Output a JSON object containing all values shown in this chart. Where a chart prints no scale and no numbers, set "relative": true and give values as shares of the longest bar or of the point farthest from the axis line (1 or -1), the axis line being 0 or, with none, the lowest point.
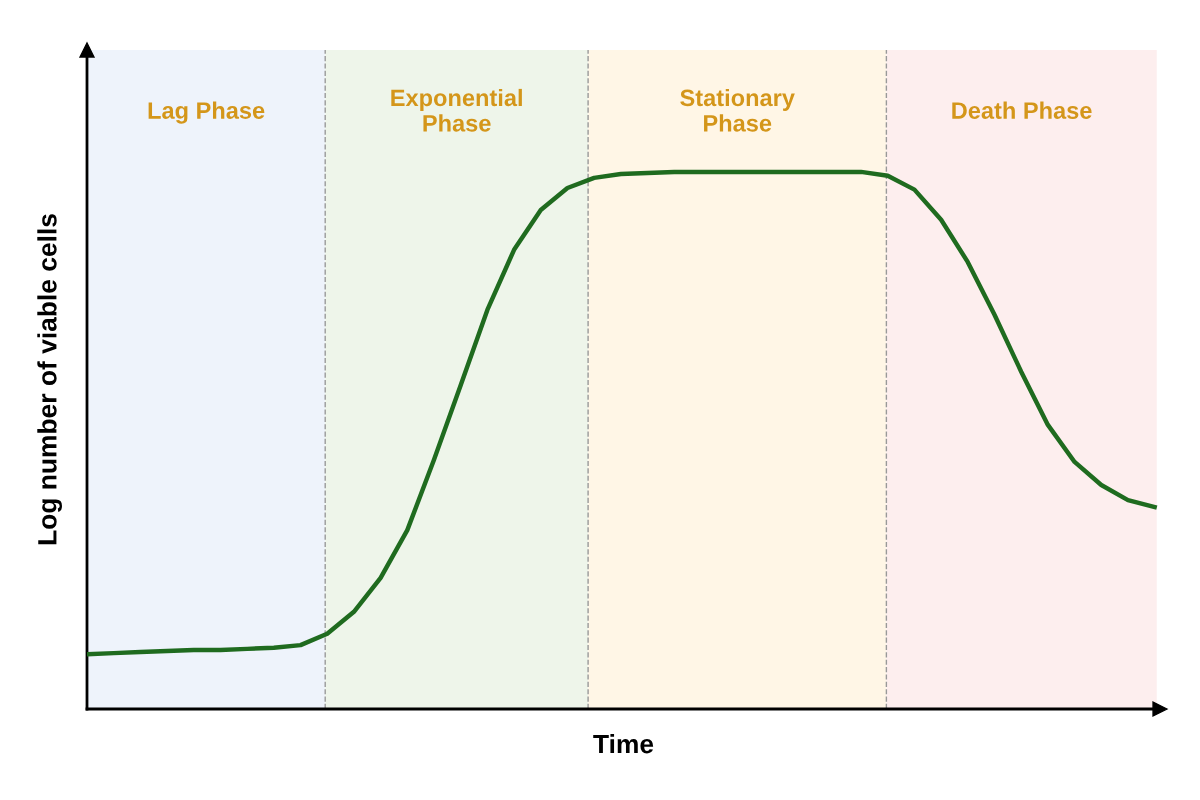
{
  "chart_data": {
    "type": "line",
    "relative": true,
    "xlabel": "Time",
    "ylabel": "Log number of viable cells",
    "categories": [
      null,
      null,
      null,
      null,
      null,
      null,
      null,
      null,
      null,
      null,
      null,
      null,
      null,
      null,
      null,
      null,
      null,
      null,
      null,
      null,
      null,
      null,
      null,
      null,
      null,
      null,
      null,
      null,
      null,
      null,
      null,
      null,
      null,
      null,
      null,
      null,
      null,
      null,
      null,
      null,
      null
    ],
    "series": [
      {
        "color": "#1f6b1f",
        "values": [
          0.102,
          0.104,
          0.106,
          0.108,
          0.11,
          0.11,
          0.112,
          0.114,
          0.119,
          0.14,
          0.181,
          0.244,
          0.333,
          0.464,
          0.603,
          0.743,
          0.855,
          0.929,
          0.97,
          0.989,
          0.996,
          0.998,
          1,
          1,
          1,
          1,
          1,
          1,
          1,
          1,
          0.993,
          0.967,
          0.911,
          0.832,
          0.734,
          0.628,
          0.529,
          0.46,
          0.417,
          0.389,
          0.376
        ]
      }
    ],
    "annotations": [
      "Lag Phase",
      "Exponential\nPhase",
      "Stationary\nPhase",
      "Death Phase"
    ],
    "legend": false,
    "marker": "none",
    "line_style": "solid"
  }
}
